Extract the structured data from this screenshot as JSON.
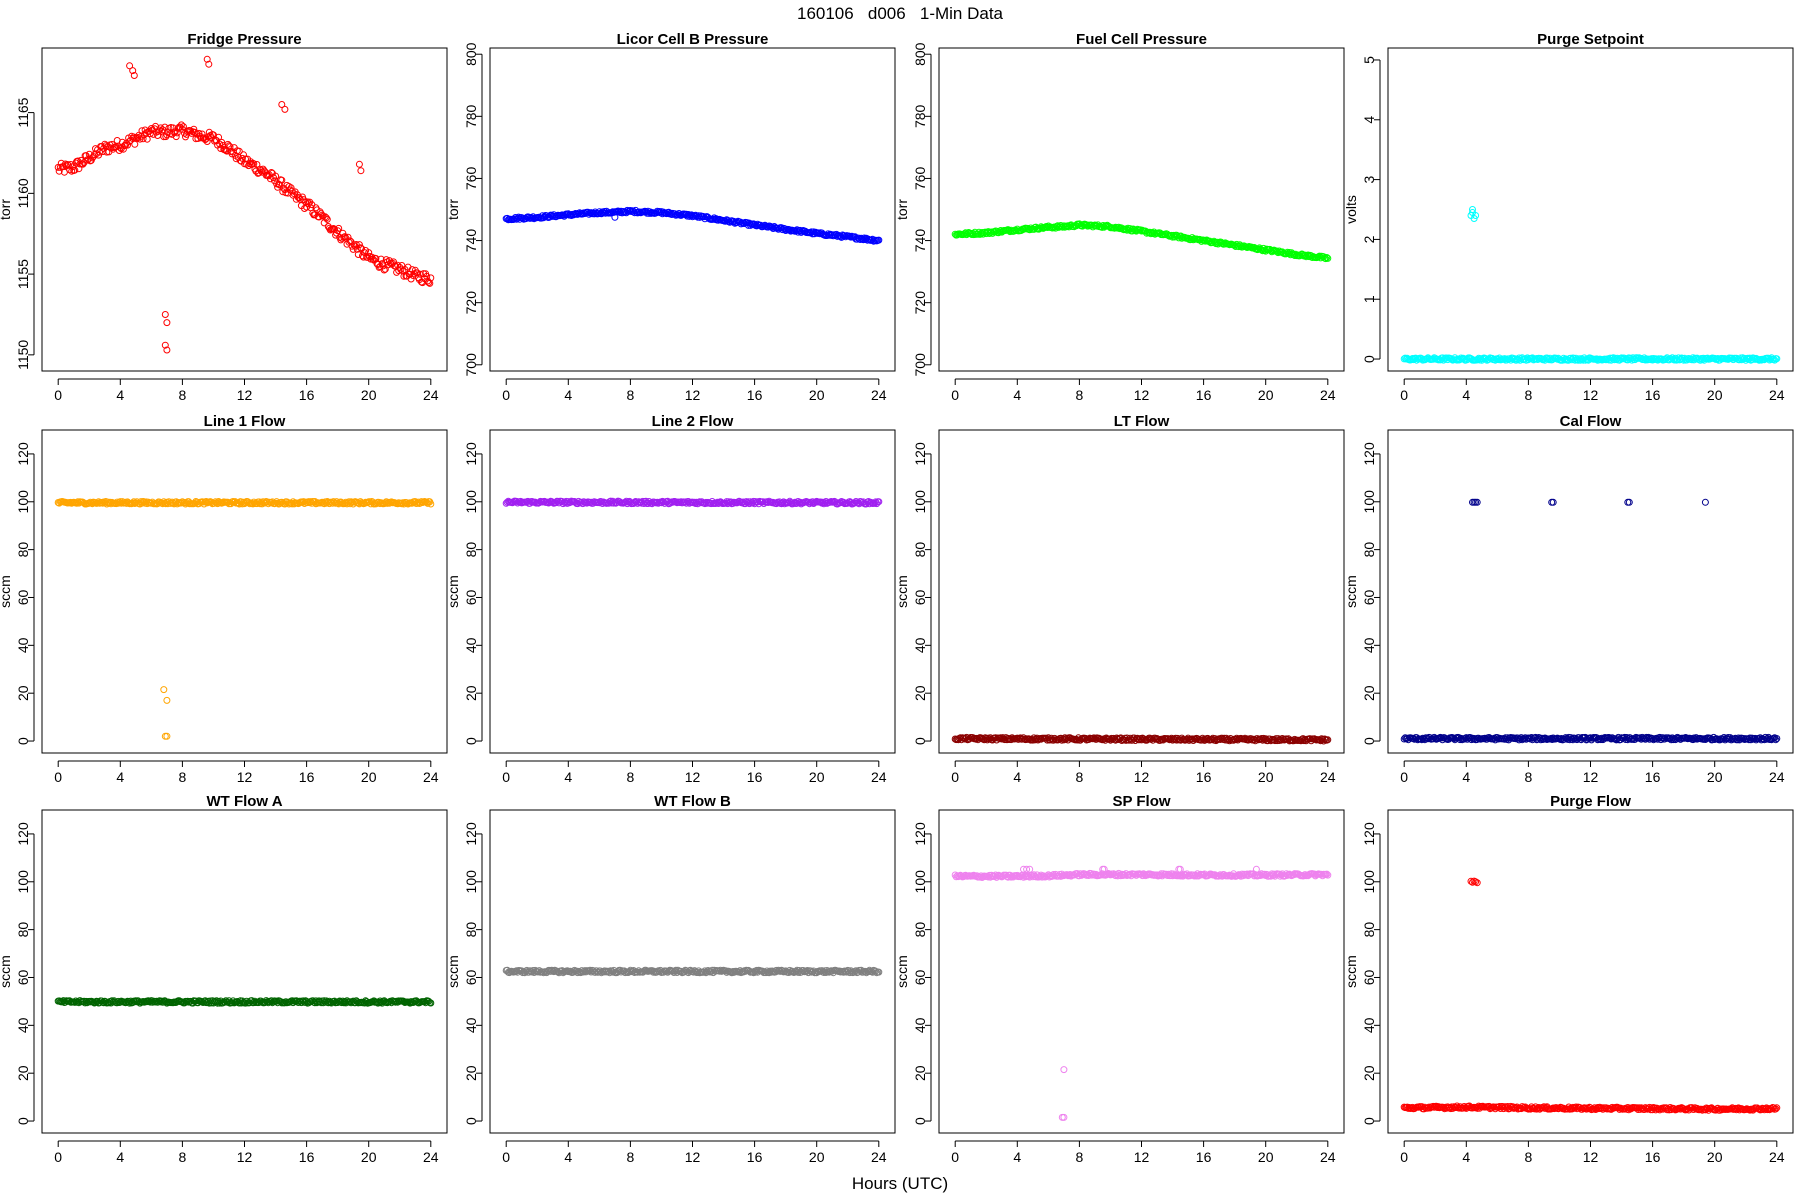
{
  "figure": {
    "title": "160106   d006   1-Min Data",
    "xlabel": "Hours (UTC)"
  },
  "chart_data": [
    {
      "type": "scatter",
      "title": "Fridge Pressure",
      "ylabel": "torr",
      "color": "#ff0000",
      "xlim": [
        0,
        24
      ],
      "ylim": [
        1149,
        1169
      ],
      "xticks": [
        0,
        4,
        8,
        12,
        16,
        20,
        24
      ],
      "yticks": [
        1150,
        1155,
        1160,
        1165
      ],
      "baseline": [
        [
          0,
          1161.5
        ],
        [
          1,
          1161.6
        ],
        [
          2,
          1162.2
        ],
        [
          3,
          1162.8
        ],
        [
          4,
          1163.0
        ],
        [
          5,
          1163.4
        ],
        [
          6,
          1163.8
        ],
        [
          7,
          1163.8
        ],
        [
          8,
          1163.9
        ],
        [
          9,
          1163.6
        ],
        [
          10,
          1163.4
        ],
        [
          11,
          1162.8
        ],
        [
          12,
          1162.0
        ],
        [
          13,
          1161.5
        ],
        [
          14,
          1160.8
        ],
        [
          15,
          1160.0
        ],
        [
          16,
          1159.3
        ],
        [
          17,
          1158.5
        ],
        [
          18,
          1157.6
        ],
        [
          19,
          1156.8
        ],
        [
          20,
          1156.0
        ],
        [
          21,
          1155.6
        ],
        [
          22,
          1155.3
        ],
        [
          23,
          1154.9
        ],
        [
          24,
          1154.7
        ]
      ],
      "outliers": [
        [
          4.6,
          1167.9
        ],
        [
          4.8,
          1167.6
        ],
        [
          4.9,
          1167.3
        ],
        [
          9.6,
          1168.3
        ],
        [
          9.7,
          1168.0
        ],
        [
          14.4,
          1165.5
        ],
        [
          14.6,
          1165.2
        ],
        [
          19.4,
          1161.8
        ],
        [
          19.5,
          1161.4
        ],
        [
          6.9,
          1152.5
        ],
        [
          7.0,
          1152.0
        ],
        [
          6.9,
          1150.6
        ],
        [
          7.0,
          1150.3
        ]
      ]
    },
    {
      "type": "scatter",
      "title": "Licor Cell B Pressure",
      "ylabel": "torr",
      "color": "#0000ff",
      "xlim": [
        0,
        24
      ],
      "ylim": [
        698,
        802
      ],
      "xticks": [
        0,
        4,
        8,
        12,
        16,
        20,
        24
      ],
      "yticks": [
        700,
        720,
        740,
        760,
        780,
        800
      ],
      "baseline": [
        [
          0,
          747.0
        ],
        [
          2,
          747.5
        ],
        [
          4,
          748.3
        ],
        [
          6,
          749.0
        ],
        [
          7,
          749.1
        ],
        [
          8,
          749.4
        ],
        [
          10,
          749.0
        ],
        [
          12,
          748.0
        ],
        [
          14,
          746.5
        ],
        [
          16,
          745.0
        ],
        [
          18,
          743.6
        ],
        [
          20,
          742.3
        ],
        [
          22,
          741.2
        ],
        [
          24,
          740.0
        ]
      ],
      "outliers": [
        [
          7.0,
          747.5
        ]
      ]
    },
    {
      "type": "scatter",
      "title": "Fuel Cell Pressure",
      "ylabel": "torr",
      "color": "#00ff00",
      "xlim": [
        0,
        24
      ],
      "ylim": [
        698,
        802
      ],
      "xticks": [
        0,
        4,
        8,
        12,
        16,
        20,
        24
      ],
      "yticks": [
        700,
        720,
        740,
        760,
        780,
        800
      ],
      "baseline": [
        [
          0,
          742.0
        ],
        [
          2,
          742.5
        ],
        [
          4,
          743.5
        ],
        [
          6,
          744.3
        ],
        [
          7,
          744.5
        ],
        [
          8,
          745.0
        ],
        [
          10,
          744.5
        ],
        [
          12,
          743.0
        ],
        [
          14,
          741.5
        ],
        [
          16,
          740.0
        ],
        [
          18,
          738.5
        ],
        [
          20,
          737.0
        ],
        [
          22,
          735.5
        ],
        [
          24,
          734.3
        ]
      ],
      "outliers": []
    },
    {
      "type": "scatter",
      "title": "Purge Setpoint",
      "ylabel": "volts",
      "color": "#00ffff",
      "xlim": [
        0,
        24
      ],
      "ylim": [
        -0.2,
        5.2
      ],
      "xticks": [
        0,
        4,
        8,
        12,
        16,
        20,
        24
      ],
      "yticks": [
        0,
        1,
        2,
        3,
        4,
        5
      ],
      "baseline": [
        [
          0,
          0.0
        ],
        [
          24,
          0.0
        ]
      ],
      "outliers": [
        [
          4.3,
          2.4
        ],
        [
          4.4,
          2.45
        ],
        [
          4.5,
          2.35
        ],
        [
          4.6,
          2.4
        ],
        [
          4.4,
          2.5
        ]
      ]
    },
    {
      "type": "scatter",
      "title": "Line 1 Flow",
      "ylabel": "sccm",
      "color": "#ffa500",
      "xlim": [
        0,
        24
      ],
      "ylim": [
        -5,
        130
      ],
      "xticks": [
        0,
        4,
        8,
        12,
        16,
        20,
        24
      ],
      "yticks": [
        0,
        20,
        40,
        60,
        80,
        100,
        120
      ],
      "baseline": [
        [
          0,
          99.6
        ],
        [
          24,
          99.6
        ]
      ],
      "outliers": [
        [
          6.8,
          21.5
        ],
        [
          7.0,
          17.0
        ],
        [
          6.9,
          2.0
        ],
        [
          7.0,
          2.0
        ]
      ]
    },
    {
      "type": "scatter",
      "title": "Line 2 Flow",
      "ylabel": "sccm",
      "color": "#a020f0",
      "xlim": [
        0,
        24
      ],
      "ylim": [
        -5,
        130
      ],
      "xticks": [
        0,
        4,
        8,
        12,
        16,
        20,
        24
      ],
      "yticks": [
        0,
        20,
        40,
        60,
        80,
        100,
        120
      ],
      "baseline": [
        [
          0,
          99.8
        ],
        [
          24,
          99.6
        ]
      ],
      "outliers": []
    },
    {
      "type": "scatter",
      "title": "LT Flow",
      "ylabel": "sccm",
      "color": "#8b0000",
      "xlim": [
        0,
        24
      ],
      "ylim": [
        -5,
        130
      ],
      "xticks": [
        0,
        4,
        8,
        12,
        16,
        20,
        24
      ],
      "yticks": [
        0,
        20,
        40,
        60,
        80,
        100,
        120
      ],
      "baseline": [
        [
          0,
          1.0
        ],
        [
          24,
          0.5
        ]
      ],
      "outliers": []
    },
    {
      "type": "scatter",
      "title": "Cal Flow",
      "ylabel": "sccm",
      "color": "#00008b",
      "xlim": [
        0,
        24
      ],
      "ylim": [
        -5,
        130
      ],
      "xticks": [
        0,
        4,
        8,
        12,
        16,
        20,
        24
      ],
      "yticks": [
        0,
        20,
        40,
        60,
        80,
        100,
        120
      ],
      "baseline": [
        [
          0,
          1.0
        ],
        [
          24,
          1.0
        ]
      ],
      "outliers": [
        [
          4.4,
          99.8
        ],
        [
          4.5,
          99.8
        ],
        [
          4.6,
          99.8
        ],
        [
          4.7,
          99.8
        ],
        [
          9.5,
          99.8
        ],
        [
          9.6,
          99.8
        ],
        [
          14.4,
          99.8
        ],
        [
          14.5,
          99.8
        ],
        [
          19.4,
          99.8
        ]
      ]
    },
    {
      "type": "scatter",
      "title": "WT Flow A",
      "ylabel": "sccm",
      "color": "#006400",
      "xlim": [
        0,
        24
      ],
      "ylim": [
        -5,
        130
      ],
      "xticks": [
        0,
        4,
        8,
        12,
        16,
        20,
        24
      ],
      "yticks": [
        0,
        20,
        40,
        60,
        80,
        100,
        120
      ],
      "baseline": [
        [
          0,
          49.8
        ],
        [
          24,
          49.8
        ]
      ],
      "outliers": []
    },
    {
      "type": "scatter",
      "title": "WT Flow B",
      "ylabel": "sccm",
      "color": "#808080",
      "xlim": [
        0,
        24
      ],
      "ylim": [
        -5,
        130
      ],
      "xticks": [
        0,
        4,
        8,
        12,
        16,
        20,
        24
      ],
      "yticks": [
        0,
        20,
        40,
        60,
        80,
        100,
        120
      ],
      "baseline": [
        [
          0,
          62.5
        ],
        [
          24,
          62.5
        ]
      ],
      "outliers": []
    },
    {
      "type": "scatter",
      "title": "SP Flow",
      "ylabel": "sccm",
      "color": "#ee82ee",
      "xlim": [
        0,
        24
      ],
      "ylim": [
        -5,
        130
      ],
      "xticks": [
        0,
        4,
        8,
        12,
        16,
        20,
        24
      ],
      "yticks": [
        0,
        20,
        40,
        60,
        80,
        100,
        120
      ],
      "baseline": [
        [
          0,
          102.3
        ],
        [
          4,
          102.3
        ],
        [
          6,
          102.5
        ],
        [
          8,
          103.0
        ],
        [
          12,
          103.0
        ],
        [
          16,
          102.8
        ],
        [
          20,
          102.8
        ],
        [
          24,
          103.0
        ]
      ],
      "outliers": [
        [
          4.4,
          105.2
        ],
        [
          4.6,
          105.2
        ],
        [
          4.8,
          105.2
        ],
        [
          9.5,
          105.2
        ],
        [
          9.6,
          105.2
        ],
        [
          14.4,
          105.2
        ],
        [
          14.5,
          105.2
        ],
        [
          19.4,
          105.2
        ],
        [
          7.0,
          21.5
        ],
        [
          6.9,
          1.5
        ],
        [
          7.0,
          1.5
        ]
      ]
    },
    {
      "type": "scatter",
      "title": "Purge Flow",
      "ylabel": "sccm",
      "color": "#ff0000",
      "xlim": [
        0,
        24
      ],
      "ylim": [
        -5,
        130
      ],
      "xticks": [
        0,
        4,
        8,
        12,
        16,
        20,
        24
      ],
      "yticks": [
        0,
        20,
        40,
        60,
        80,
        100,
        120
      ],
      "baseline": [
        [
          0,
          5.5
        ],
        [
          4,
          5.8
        ],
        [
          8,
          5.5
        ],
        [
          12,
          5.3
        ],
        [
          16,
          5.2
        ],
        [
          20,
          5.0
        ],
        [
          24,
          5.2
        ]
      ],
      "outliers": [
        [
          4.3,
          100.2
        ],
        [
          4.4,
          99.8
        ],
        [
          4.5,
          100.3
        ],
        [
          4.6,
          100.0
        ],
        [
          4.7,
          99.6
        ]
      ]
    }
  ]
}
